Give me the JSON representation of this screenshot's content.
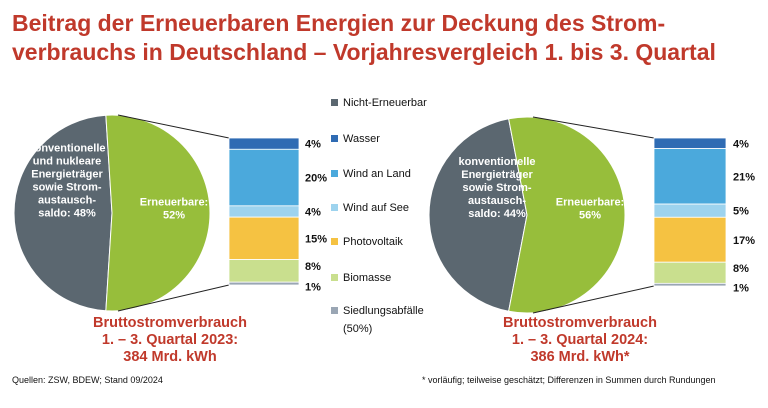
{
  "title_line1": "Beitrag der Erneuerbaren Energien zur Deckung des Strom-",
  "title_line2": "verbrauchs in Deutschland – Vorjahresvergleich 1. bis 3. Quartal",
  "colors": {
    "title": "#c0392b",
    "nicht_erneuerbar": "#5b6770",
    "erneuerbar": "#97be3b",
    "wasser": "#2f6bb3",
    "wind_an_land": "#4ba9dc",
    "wind_auf_see": "#9dd3ee",
    "photovoltaik": "#f5c242",
    "biomasse": "#c9df8e",
    "siedlungsabfaelle": "#9aa6b4"
  },
  "chart_data": [
    {
      "type": "pie",
      "year": "2023",
      "slices": [
        {
          "label_lines": [
            "konventionelle",
            "und nukleare",
            "Energieträger",
            "sowie Strom-",
            "austausch-",
            "saldo: 48%"
          ],
          "value": 48,
          "color_key": "nicht_erneuerbar"
        },
        {
          "label_lines": [
            "Erneuerbare:",
            "52%"
          ],
          "value": 52,
          "color_key": "erneuerbar"
        }
      ],
      "breakdown": [
        {
          "name": "Wasser",
          "value": 4,
          "label": "4%"
        },
        {
          "name": "Wind an Land",
          "value": 20,
          "label": "20%"
        },
        {
          "name": "Wind auf See",
          "value": 4,
          "label": "4%"
        },
        {
          "name": "Photovoltaik",
          "value": 15,
          "label": "15%"
        },
        {
          "name": "Biomasse",
          "value": 8,
          "label": "8%"
        },
        {
          "name": "Siedlungsabfälle (50%)",
          "value": 1,
          "label": "1%"
        }
      ],
      "caption_lines": [
        "Bruttostromverbrauch",
        "1. – 3. Quartal 2023:",
        "384 Mrd. kWh"
      ]
    },
    {
      "type": "pie",
      "year": "2024",
      "slices": [
        {
          "label_lines": [
            "konventionelle",
            "Energieträger",
            "sowie Strom-",
            "austausch-",
            "saldo: 44%"
          ],
          "value": 44,
          "color_key": "nicht_erneuerbar"
        },
        {
          "label_lines": [
            "Erneuerbare:",
            "56%"
          ],
          "value": 56,
          "color_key": "erneuerbar"
        }
      ],
      "breakdown": [
        {
          "name": "Wasser",
          "value": 4,
          "label": "4%"
        },
        {
          "name": "Wind an Land",
          "value": 21,
          "label": "21%"
        },
        {
          "name": "Wind auf See",
          "value": 5,
          "label": "5%"
        },
        {
          "name": "Photovoltaik",
          "value": 17,
          "label": "17%"
        },
        {
          "name": "Biomasse",
          "value": 8,
          "label": "8%"
        },
        {
          "name": "Siedlungsabfälle (50%)",
          "value": 1,
          "label": "1%"
        }
      ],
      "caption_lines": [
        "Bruttostromverbrauch",
        "1. – 3. Quartal 2024:",
        "386 Mrd. kWh*"
      ]
    }
  ],
  "legend": [
    {
      "lines": [
        "Nicht-Erneuerbar"
      ],
      "color_key": "nicht_erneuerbar"
    },
    {
      "lines": [
        "Wasser"
      ],
      "color_key": "wasser"
    },
    {
      "lines": [
        "Wind an Land"
      ],
      "color_key": "wind_an_land"
    },
    {
      "lines": [
        "Wind auf See"
      ],
      "color_key": "wind_auf_see"
    },
    {
      "lines": [
        "Photovoltaik"
      ],
      "color_key": "photovoltaik"
    },
    {
      "lines": [
        "Biomasse"
      ],
      "color_key": "biomasse"
    },
    {
      "lines": [
        "Siedlungsabfälle",
        "(50%)"
      ],
      "color_key": "siedlungsabfaelle"
    }
  ],
  "source_note": "Quellen: ZSW, BDEW; Stand 09/2024",
  "footnote": "* vorläufig; teilweise geschätzt; Differenzen in Summen durch Rundungen"
}
